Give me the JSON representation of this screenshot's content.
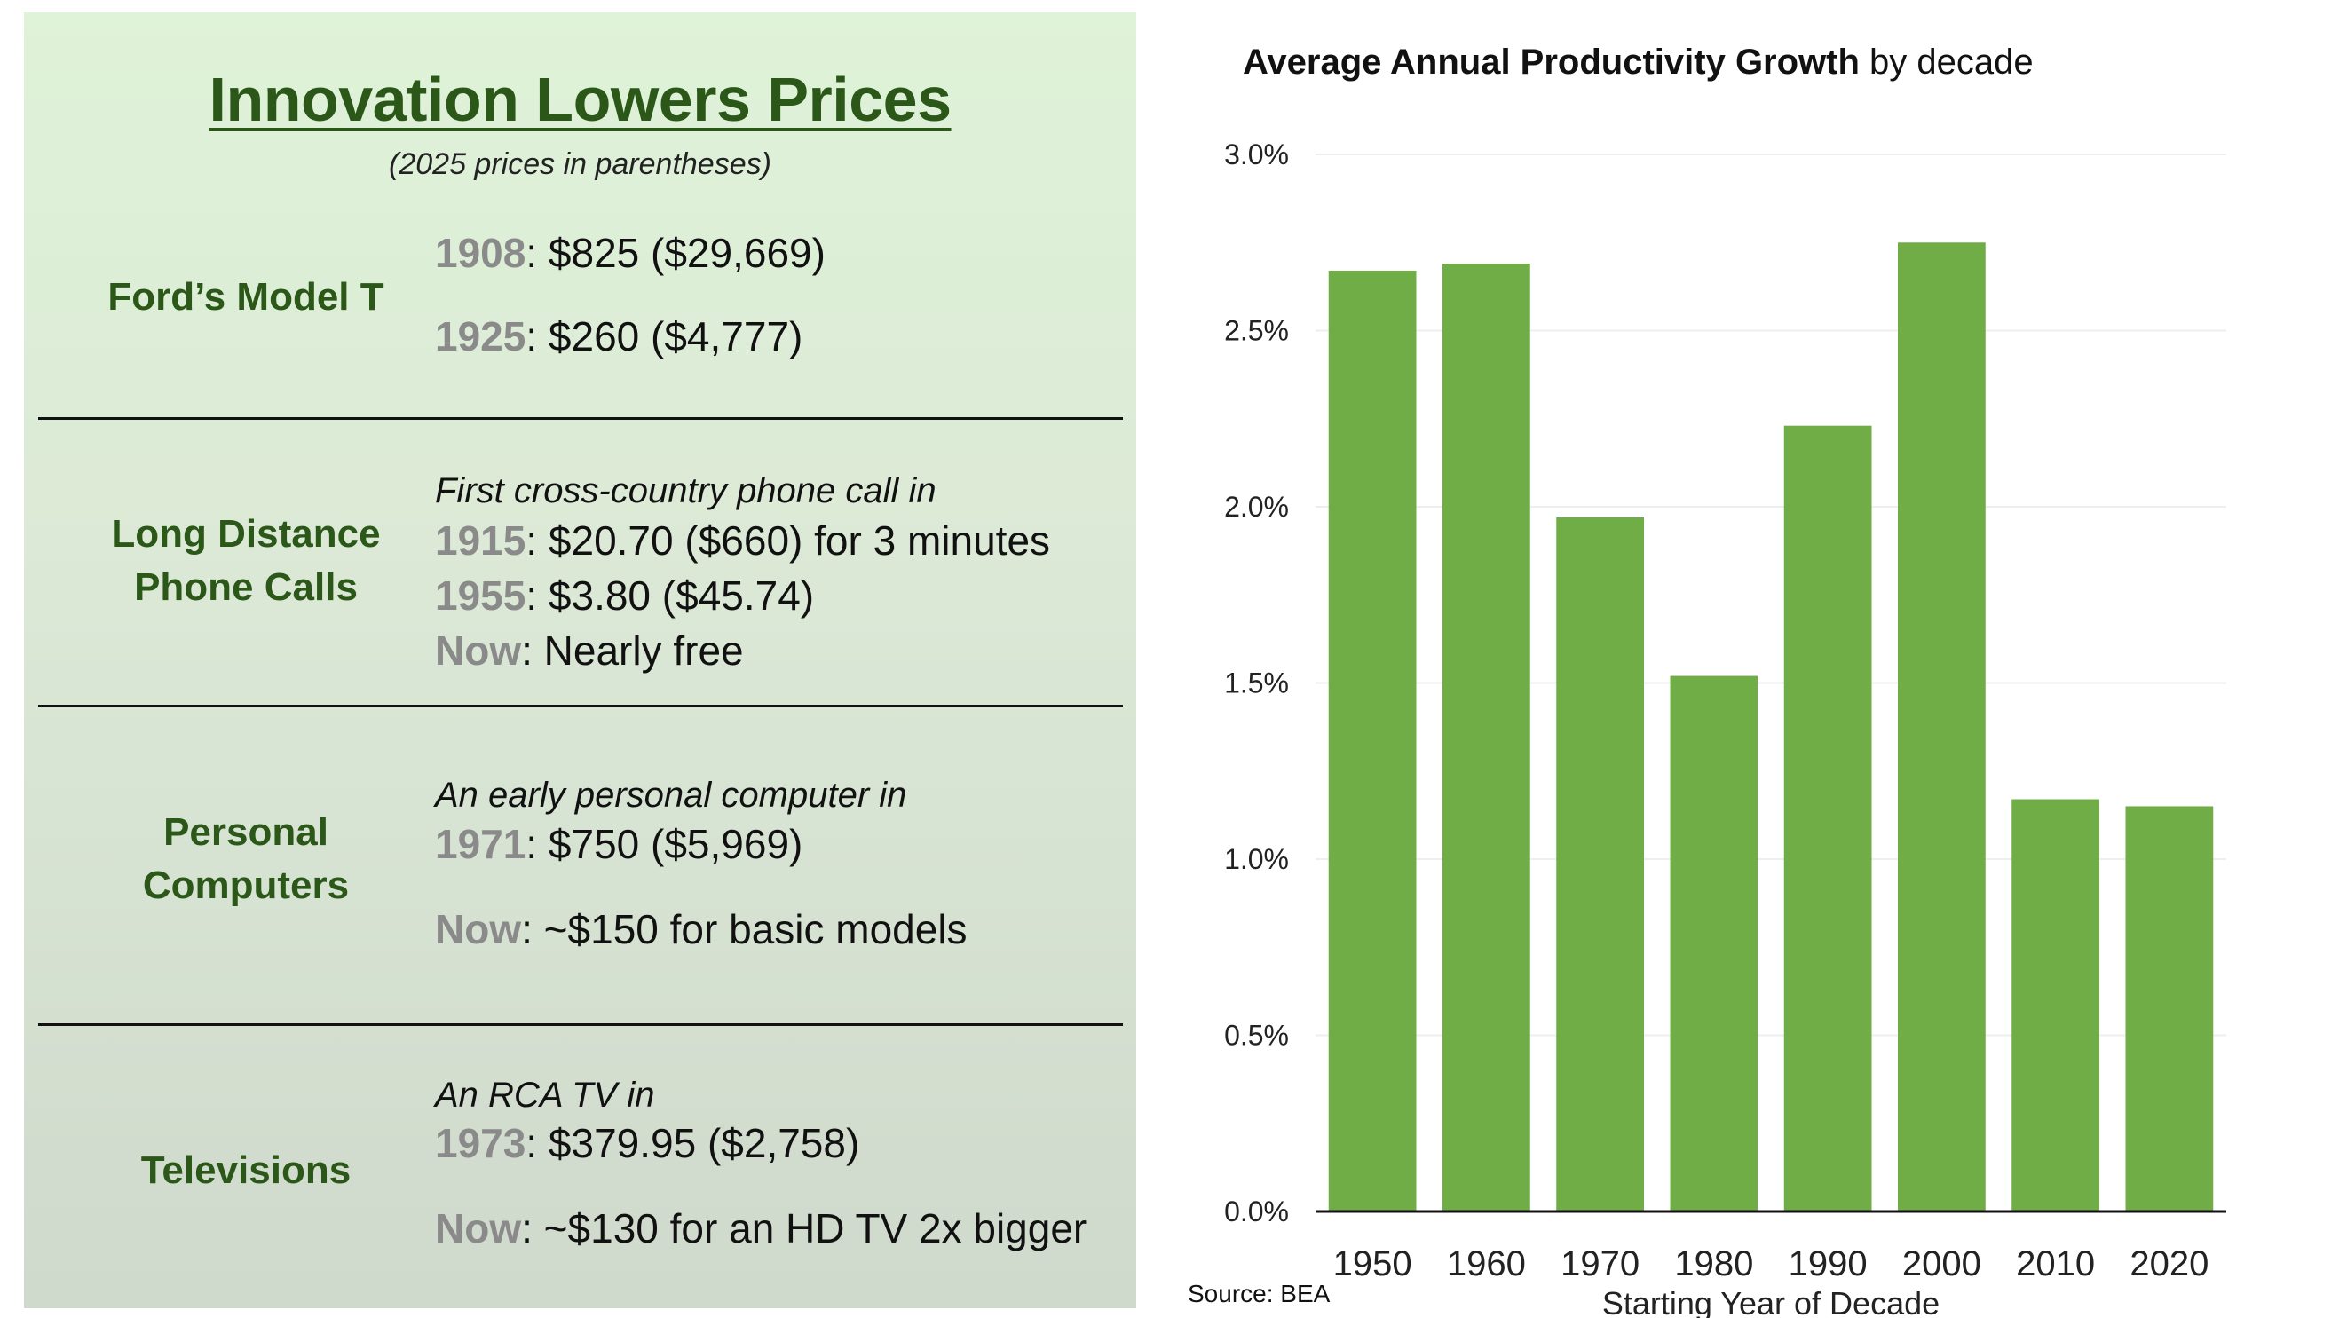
{
  "left_panel": {
    "title": "Innovation Lowers Prices",
    "subtitle": "(2025 prices in parentheses)",
    "sections": [
      {
        "category": [
          "Ford’s Model T"
        ],
        "lines": [
          {
            "year": "1908",
            "text": ": $825 ($29,669)"
          },
          {
            "year": "1925",
            "text": ": $260 ($4,777)"
          }
        ]
      },
      {
        "category": [
          "Long Distance",
          "Phone Calls"
        ],
        "intro": "First cross-country phone call in",
        "lines": [
          {
            "year": "1915",
            "text": ": $20.70 ($660) for 3 minutes"
          },
          {
            "year": "1955",
            "text": ": $3.80 ($45.74)"
          },
          {
            "year": "Now",
            "text": ": Nearly free"
          }
        ]
      },
      {
        "category": [
          "Personal",
          "Computers"
        ],
        "intro": "An early personal computer in",
        "lines": [
          {
            "year": "1971",
            "text": ": $750 ($5,969)"
          },
          {
            "year": "Now",
            "text": ": ~$150 for basic models"
          }
        ]
      },
      {
        "category": [
          "Televisions"
        ],
        "intro": "An RCA TV in",
        "lines": [
          {
            "year": "1973",
            "text": ": $379.95 ($2,758)"
          },
          {
            "year": "Now",
            "text": ": ~$130 for an HD TV 2x bigger"
          }
        ]
      }
    ],
    "colors": {
      "category": "#2b5718",
      "year": "#8a8a8a",
      "panel_top": "#dff3d8",
      "panel_bottom": "#cfd9cc"
    }
  },
  "chart_data": {
    "type": "bar",
    "title_bold": "Average Annual Productivity Growth",
    "title_rest": " by decade",
    "categories": [
      "1950",
      "1960",
      "1970",
      "1980",
      "1990",
      "2000",
      "2010",
      "2020"
    ],
    "values": [
      2.67,
      2.69,
      1.97,
      1.52,
      2.23,
      2.75,
      1.17,
      1.15
    ],
    "unit": "%",
    "xlabel": "Starting Year of Decade",
    "ylabel": "",
    "ylim": [
      0,
      3.0
    ],
    "yticks": [
      "0.0%",
      "0.5%",
      "1.0%",
      "1.5%",
      "2.0%",
      "2.5%",
      "3.0%"
    ],
    "grid": true,
    "bar_color": "#70ad47",
    "source": "Source: BEA"
  }
}
